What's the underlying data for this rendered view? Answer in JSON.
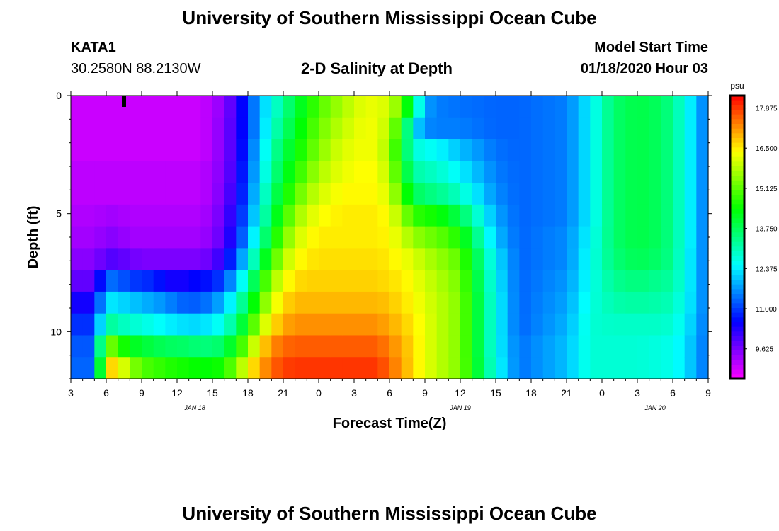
{
  "header": {
    "title": "University of Southern Mississippi Ocean Cube",
    "station_id": "KATA1",
    "station_coords": "30.2580N 88.2130W",
    "plot_title": "2-D Salinity at Depth",
    "model_label": "Model Start Time",
    "model_start": "01/18/2020 Hour 03"
  },
  "footer": {
    "title": "University of Southern Mississippi Ocean Cube"
  },
  "chart_data": {
    "type": "heatmap",
    "title": "2-D Salinity at Depth",
    "xlabel": "Forecast Time(Z)",
    "ylabel": "Depth (ft)",
    "x_tick_labels": [
      "3",
      "6",
      "9",
      "12",
      "15",
      "18",
      "21",
      "0",
      "3",
      "6",
      "9",
      "12",
      "15",
      "18",
      "21",
      "0",
      "3",
      "6",
      "9"
    ],
    "x_range_hours_since_start": [
      0,
      54
    ],
    "date_labels": [
      {
        "label": "JAN 18",
        "hour": 10.5
      },
      {
        "label": "JAN 19",
        "hour": 33
      },
      {
        "label": "JAN 20",
        "hour": 49.5
      }
    ],
    "y_tick_labels": [
      "0",
      "5",
      "10"
    ],
    "y_tick_values": [
      0,
      5,
      10
    ],
    "y_range_ft": [
      0,
      12
    ],
    "colorbar": {
      "units": "psu",
      "labels": [
        "17.875",
        "16.500",
        "15.125",
        "13.750",
        "12.375",
        "11.000",
        "9.625"
      ],
      "label_values": [
        17.875,
        16.5,
        15.125,
        13.75,
        12.375,
        11.0,
        9.625
      ],
      "range": [
        8.6,
        18.3
      ]
    },
    "depths_ft": [
      0,
      1,
      2,
      3,
      4,
      5,
      6,
      7,
      8,
      9,
      10,
      11,
      12
    ],
    "profile_hours": [
      0,
      1,
      2,
      3,
      4,
      5,
      6,
      7,
      8,
      9,
      10,
      11,
      12,
      13,
      14,
      15,
      16,
      17,
      18,
      19,
      20,
      21,
      22,
      23,
      24,
      25,
      26,
      27,
      28,
      29,
      30,
      31,
      33,
      36,
      38,
      42,
      44,
      46,
      48,
      50,
      51,
      52,
      53,
      54
    ],
    "salinity": [
      [
        9.0,
        9.0,
        9.0,
        9.1,
        9.1,
        9.2,
        9.3,
        9.5,
        9.8,
        10.4,
        10.9,
        11.2,
        11.3
      ],
      [
        9.0,
        9.0,
        9.0,
        9.1,
        9.1,
        9.2,
        9.3,
        9.5,
        9.8,
        10.4,
        10.9,
        11.2,
        11.3
      ],
      [
        9.0,
        9.0,
        9.0,
        9.1,
        9.1,
        9.2,
        9.3,
        9.5,
        9.8,
        10.4,
        10.9,
        11.2,
        11.3
      ],
      [
        9.0,
        9.0,
        9.0,
        9.1,
        9.1,
        9.3,
        9.5,
        9.9,
        11.4,
        12.4,
        13.4,
        15.6,
        16.8
      ],
      [
        9.0,
        9.0,
        9.0,
        9.1,
        9.1,
        9.3,
        9.5,
        9.9,
        11.3,
        12.2,
        13.0,
        14.8,
        16.5
      ],
      [
        9.0,
        9.0,
        9.0,
        9.1,
        9.1,
        9.2,
        9.3,
        9.7,
        11.0,
        12.1,
        12.9,
        14.3,
        15.6
      ],
      [
        9.0,
        9.0,
        9.0,
        9.1,
        9.1,
        9.2,
        9.3,
        9.6,
        10.9,
        11.9,
        12.7,
        14.0,
        15.0
      ],
      [
        9.0,
        9.0,
        9.0,
        9.1,
        9.1,
        9.2,
        9.3,
        9.6,
        10.8,
        11.8,
        12.6,
        13.9,
        14.9
      ],
      [
        9.0,
        9.0,
        9.0,
        9.1,
        9.1,
        9.2,
        9.3,
        9.6,
        10.5,
        11.6,
        12.4,
        13.7,
        14.7
      ],
      [
        9.0,
        9.0,
        9.0,
        9.1,
        9.1,
        9.2,
        9.3,
        9.6,
        10.3,
        11.4,
        12.3,
        13.7,
        14.6
      ],
      [
        9.0,
        9.0,
        9.0,
        9.1,
        9.1,
        9.2,
        9.3,
        9.6,
        10.5,
        11.2,
        12.2,
        13.6,
        14.5
      ],
      [
        9.0,
        9.0,
        9.0,
        9.1,
        9.1,
        9.2,
        9.3,
        9.6,
        10.6,
        11.3,
        12.2,
        13.5,
        14.4
      ],
      [
        9.2,
        9.2,
        9.2,
        9.3,
        9.3,
        9.4,
        9.5,
        9.8,
        10.7,
        11.5,
        12.4,
        13.5,
        14.4
      ],
      [
        9.5,
        9.6,
        9.6,
        9.6,
        9.7,
        9.8,
        9.9,
        10.3,
        11.1,
        12.0,
        12.7,
        13.7,
        14.6
      ],
      [
        10.1,
        10.1,
        10.1,
        10.2,
        10.3,
        10.5,
        10.7,
        11.2,
        12.0,
        12.8,
        13.5,
        14.5,
        15.4
      ],
      [
        11.0,
        11.0,
        11.1,
        11.2,
        11.3,
        11.5,
        11.8,
        12.4,
        13.1,
        13.8,
        14.5,
        15.4,
        16.3
      ],
      [
        11.9,
        11.9,
        12.1,
        12.2,
        12.4,
        12.6,
        13.0,
        13.6,
        14.4,
        15.0,
        15.7,
        16.5,
        17.0
      ],
      [
        12.6,
        12.8,
        13.0,
        13.2,
        13.5,
        13.8,
        14.2,
        14.8,
        15.5,
        16.0,
        16.5,
        17.2,
        17.5
      ],
      [
        13.3,
        13.5,
        13.8,
        14.0,
        14.3,
        14.7,
        15.2,
        15.7,
        16.2,
        16.6,
        17.0,
        17.5,
        17.8
      ],
      [
        13.9,
        14.1,
        14.3,
        14.6,
        15.0,
        15.5,
        15.9,
        16.3,
        16.6,
        16.9,
        17.2,
        17.6,
        17.9
      ],
      [
        14.5,
        14.7,
        14.9,
        15.2,
        15.6,
        16.0,
        16.3,
        16.5,
        16.7,
        16.9,
        17.2,
        17.6,
        17.9
      ],
      [
        15.0,
        15.2,
        15.4,
        15.7,
        16.0,
        16.3,
        16.5,
        16.6,
        16.7,
        16.9,
        17.2,
        17.6,
        17.9
      ],
      [
        15.4,
        15.6,
        15.8,
        16.0,
        16.2,
        16.4,
        16.5,
        16.6,
        16.7,
        16.9,
        17.2,
        17.6,
        17.9
      ],
      [
        15.7,
        15.9,
        16.1,
        16.2,
        16.4,
        16.5,
        16.5,
        16.6,
        16.7,
        16.9,
        17.2,
        17.6,
        17.9
      ],
      [
        16.0,
        16.1,
        16.2,
        16.3,
        16.4,
        16.5,
        16.5,
        16.6,
        16.7,
        16.9,
        17.2,
        17.6,
        17.9
      ],
      [
        16.2,
        16.3,
        16.3,
        16.4,
        16.4,
        16.5,
        16.5,
        16.6,
        16.7,
        16.9,
        17.2,
        17.6,
        17.9
      ],
      [
        16.2,
        16.2,
        16.2,
        16.3,
        16.4,
        16.5,
        16.5,
        16.6,
        16.7,
        16.9,
        17.2,
        17.6,
        17.9
      ],
      [
        16.0,
        15.8,
        15.6,
        15.8,
        16.0,
        16.3,
        16.4,
        16.5,
        16.6,
        16.8,
        17.0,
        17.3,
        17.5
      ],
      [
        15.2,
        14.5,
        14.2,
        14.5,
        15.0,
        15.6,
        16.0,
        16.3,
        16.5,
        16.6,
        16.8,
        17.0,
        17.1
      ],
      [
        13.5,
        12.4,
        12.8,
        13.2,
        13.8,
        14.8,
        15.6,
        16.1,
        16.3,
        16.4,
        16.5,
        16.6,
        16.6
      ],
      [
        11.8,
        11.6,
        12.6,
        13.0,
        13.5,
        14.6,
        15.3,
        15.8,
        16.0,
        16.1,
        16.2,
        16.2,
        16.2
      ],
      [
        11.5,
        11.5,
        12.5,
        12.9,
        13.4,
        14.5,
        15.2,
        15.6,
        15.8,
        15.9,
        15.9,
        15.9,
        15.9
      ],
      [
        11.4,
        11.5,
        12.0,
        12.4,
        12.9,
        13.8,
        14.6,
        15.1,
        15.3,
        15.4,
        15.4,
        15.4,
        15.4
      ],
      [
        11.3,
        11.3,
        11.4,
        11.5,
        11.6,
        11.8,
        12.0,
        12.3,
        12.4,
        12.5,
        12.5,
        12.5,
        12.6
      ],
      [
        11.3,
        11.3,
        11.3,
        11.3,
        11.3,
        11.3,
        11.3,
        11.3,
        11.3,
        11.3,
        11.3,
        11.4,
        11.4
      ],
      [
        11.5,
        11.5,
        11.5,
        11.5,
        11.5,
        11.5,
        11.6,
        11.6,
        11.7,
        11.8,
        11.9,
        12.0,
        12.0
      ],
      [
        12.4,
        12.4,
        12.4,
        12.4,
        12.4,
        12.4,
        12.5,
        12.6,
        12.6,
        12.7,
        12.8,
        12.8,
        12.8
      ],
      [
        13.6,
        13.6,
        13.6,
        13.6,
        13.6,
        13.6,
        13.6,
        13.5,
        13.3,
        13.1,
        12.9,
        12.8,
        12.8
      ],
      [
        13.9,
        13.9,
        13.9,
        13.9,
        13.9,
        13.9,
        13.9,
        13.8,
        13.5,
        13.2,
        12.9,
        12.8,
        12.8
      ],
      [
        13.7,
        13.7,
        13.7,
        13.7,
        13.7,
        13.7,
        13.7,
        13.6,
        13.3,
        13.1,
        12.9,
        12.7,
        12.7
      ],
      [
        13.3,
        13.3,
        13.3,
        13.3,
        13.3,
        13.3,
        13.3,
        13.3,
        13.2,
        13.0,
        12.8,
        12.6,
        12.6
      ],
      [
        12.7,
        12.7,
        12.7,
        12.7,
        12.7,
        12.7,
        12.7,
        12.6,
        12.6,
        12.5,
        12.4,
        12.3,
        12.3
      ],
      [
        12.0,
        12.0,
        12.0,
        12.0,
        12.0,
        12.0,
        12.0,
        12.0,
        12.0,
        12.0,
        11.9,
        11.8,
        11.8
      ],
      [
        11.3,
        11.3,
        11.3,
        11.3,
        11.3,
        11.3,
        11.3,
        11.3,
        11.3,
        11.3,
        11.3,
        11.3,
        11.3
      ]
    ]
  }
}
